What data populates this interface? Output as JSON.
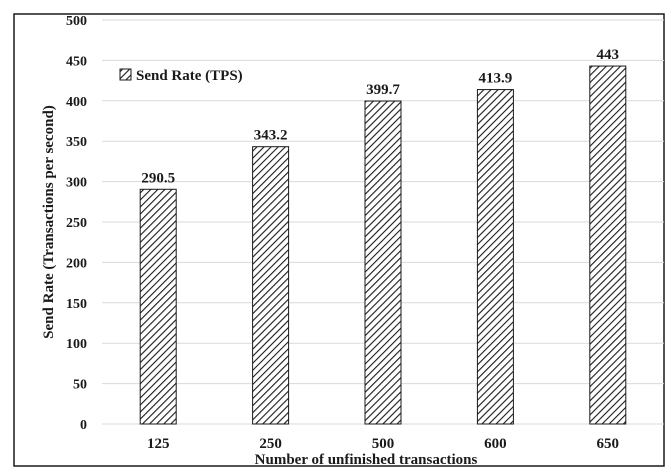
{
  "chart_data": {
    "type": "bar",
    "title": "",
    "xlabel": "Number of unfinished transactions",
    "ylabel": "Send Rate (Transactions per second)",
    "categories": [
      "125",
      "250",
      "500",
      "600",
      "650"
    ],
    "series": [
      {
        "name": "Send Rate (TPS)",
        "values": [
          290.5,
          343.2,
          399.7,
          413.9,
          443
        ],
        "labels": [
          "290.5",
          "343.2",
          "399.7",
          "413.9",
          "443"
        ],
        "pattern": "diagonal-hatch"
      }
    ],
    "ylim": [
      0,
      500
    ],
    "yticks": [
      "0",
      "50",
      "100",
      "150",
      "200",
      "250",
      "300",
      "350",
      "400",
      "450",
      "500"
    ],
    "grid": true,
    "legend_position": "top-left",
    "colors": {
      "bar_stroke": "#1a1a1a",
      "hatch": "#1a1a1a",
      "grid": "#d9d9d9",
      "frame": "#1a1a1a"
    }
  }
}
